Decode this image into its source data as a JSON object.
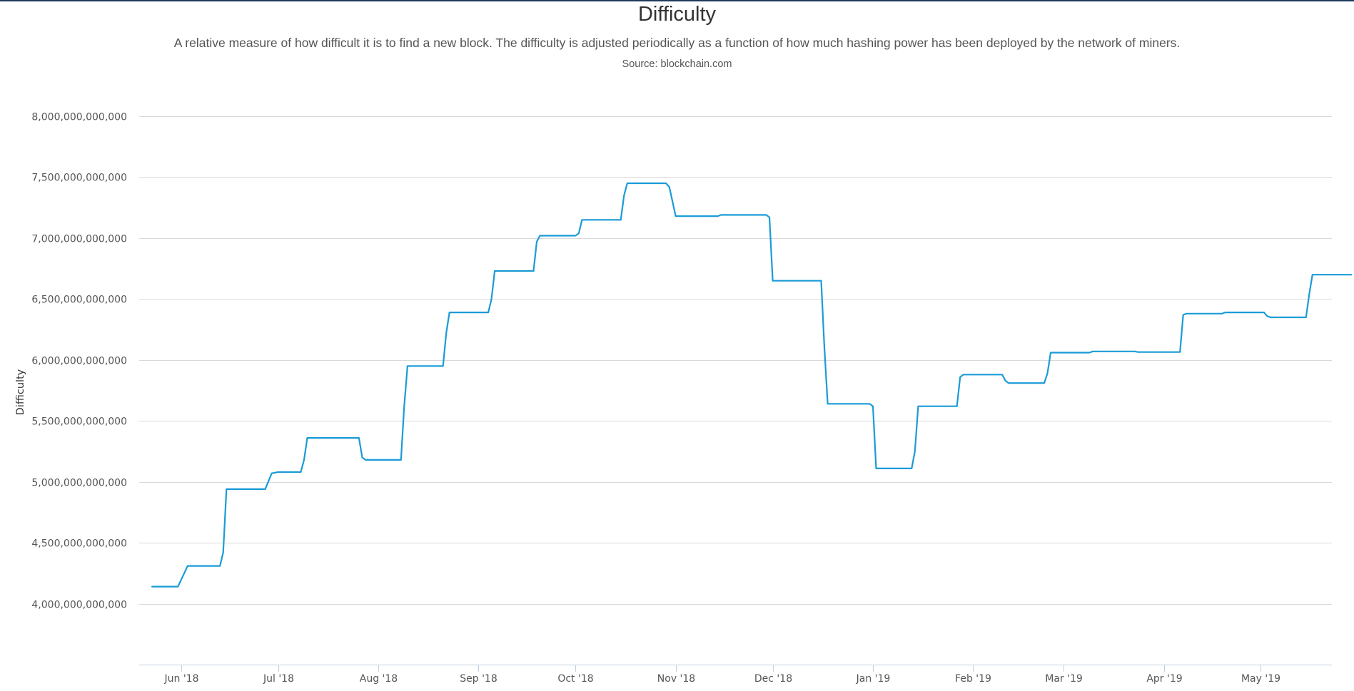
{
  "header": {
    "title": "Difficulty",
    "subtitle": "A relative measure of how difficult it is to find a new block. The difficulty is adjusted periodically as a function of how much hashing power has been deployed by the network of miners.",
    "source": "Source: blockchain.com"
  },
  "colors": {
    "line": "#1a9bd7",
    "grid": "#d9d9d9",
    "axis": "#c0d0e0",
    "top_rule": "#1b3a5c"
  },
  "chart_data": {
    "type": "line",
    "title": "Difficulty",
    "ylabel": "Difficulty",
    "xlabel": "",
    "ylim": [
      3500000000000,
      8000000000000
    ],
    "xlim": [
      "2018-05-19",
      "2019-05-23"
    ],
    "grid": true,
    "legend": "none",
    "y_ticks": [
      {
        "value": 4000000000000,
        "label": "4,000,000,000,000"
      },
      {
        "value": 4500000000000,
        "label": "4,500,000,000,000"
      },
      {
        "value": 5000000000000,
        "label": "5,000,000,000,000"
      },
      {
        "value": 5500000000000,
        "label": "5,500,000,000,000"
      },
      {
        "value": 6000000000000,
        "label": "6,000,000,000,000"
      },
      {
        "value": 6500000000000,
        "label": "6,500,000,000,000"
      },
      {
        "value": 7000000000000,
        "label": "7,000,000,000,000"
      },
      {
        "value": 7500000000000,
        "label": "7,500,000,000,000"
      },
      {
        "value": 8000000000000,
        "label": "8,000,000,000,000"
      }
    ],
    "x_ticks": [
      {
        "date": "2018-06-01",
        "label": "Jun '18"
      },
      {
        "date": "2018-07-01",
        "label": "Jul '18"
      },
      {
        "date": "2018-08-01",
        "label": "Aug '18"
      },
      {
        "date": "2018-09-01",
        "label": "Sep '18"
      },
      {
        "date": "2018-10-01",
        "label": "Oct '18"
      },
      {
        "date": "2018-11-01",
        "label": "Nov '18"
      },
      {
        "date": "2018-12-01",
        "label": "Dec '18"
      },
      {
        "date": "2019-01-01",
        "label": "Jan '19"
      },
      {
        "date": "2019-02-01",
        "label": "Feb '19"
      },
      {
        "date": "2019-03-01",
        "label": "Mar '19"
      },
      {
        "date": "2019-04-01",
        "label": "Apr '19"
      },
      {
        "date": "2019-05-01",
        "label": "May '19"
      }
    ],
    "series": [
      {
        "points": [
          [
            "2018-05-23",
            4140000000000
          ],
          [
            "2018-05-31",
            4140000000000
          ],
          [
            "2018-06-03",
            4310000000000
          ],
          [
            "2018-06-13",
            4310000000000
          ],
          [
            "2018-06-14",
            4420000000000
          ],
          [
            "2018-06-15",
            4940000000000
          ],
          [
            "2018-06-27",
            4940000000000
          ],
          [
            "2018-06-29",
            5070000000000
          ],
          [
            "2018-07-01",
            5080000000000
          ],
          [
            "2018-07-08",
            5080000000000
          ],
          [
            "2018-07-09",
            5180000000000
          ],
          [
            "2018-07-10",
            5360000000000
          ],
          [
            "2018-07-26",
            5360000000000
          ],
          [
            "2018-07-27",
            5200000000000
          ],
          [
            "2018-07-28",
            5180000000000
          ],
          [
            "2018-08-08",
            5180000000000
          ],
          [
            "2018-08-09",
            5620000000000
          ],
          [
            "2018-08-10",
            5950000000000
          ],
          [
            "2018-08-21",
            5950000000000
          ],
          [
            "2018-08-22",
            6220000000000
          ],
          [
            "2018-08-23",
            6390000000000
          ],
          [
            "2018-09-04",
            6390000000000
          ],
          [
            "2018-09-05",
            6500000000000
          ],
          [
            "2018-09-06",
            6730000000000
          ],
          [
            "2018-09-18",
            6730000000000
          ],
          [
            "2018-09-19",
            6970000000000
          ],
          [
            "2018-09-20",
            7020000000000
          ],
          [
            "2018-10-01",
            7020000000000
          ],
          [
            "2018-10-02",
            7040000000000
          ],
          [
            "2018-10-03",
            7150000000000
          ],
          [
            "2018-10-15",
            7150000000000
          ],
          [
            "2018-10-16",
            7350000000000
          ],
          [
            "2018-10-17",
            7450000000000
          ],
          [
            "2018-10-29",
            7450000000000
          ],
          [
            "2018-10-30",
            7420000000000
          ],
          [
            "2018-11-01",
            7180000000000
          ],
          [
            "2018-11-14",
            7180000000000
          ],
          [
            "2018-11-15",
            7190000000000
          ],
          [
            "2018-11-29",
            7190000000000
          ],
          [
            "2018-11-30",
            7170000000000
          ],
          [
            "2018-12-01",
            6650000000000
          ],
          [
            "2018-12-16",
            6650000000000
          ],
          [
            "2018-12-17",
            6100000000000
          ],
          [
            "2018-12-18",
            5640000000000
          ],
          [
            "2018-12-31",
            5640000000000
          ],
          [
            "2019-01-01",
            5620000000000
          ],
          [
            "2019-01-02",
            5110000000000
          ],
          [
            "2019-01-13",
            5110000000000
          ],
          [
            "2019-01-14",
            5250000000000
          ],
          [
            "2019-01-15",
            5620000000000
          ],
          [
            "2019-01-27",
            5620000000000
          ],
          [
            "2019-01-28",
            5860000000000
          ],
          [
            "2019-01-29",
            5880000000000
          ],
          [
            "2019-02-10",
            5880000000000
          ],
          [
            "2019-02-11",
            5830000000000
          ],
          [
            "2019-02-12",
            5810000000000
          ],
          [
            "2019-02-23",
            5810000000000
          ],
          [
            "2019-02-24",
            5890000000000
          ],
          [
            "2019-02-25",
            6060000000000
          ],
          [
            "2019-03-09",
            6060000000000
          ],
          [
            "2019-03-10",
            6070000000000
          ],
          [
            "2019-03-23",
            6070000000000
          ],
          [
            "2019-03-24",
            6065000000000
          ],
          [
            "2019-04-06",
            6065000000000
          ],
          [
            "2019-04-07",
            6370000000000
          ],
          [
            "2019-04-08",
            6380000000000
          ],
          [
            "2019-04-19",
            6380000000000
          ],
          [
            "2019-04-20",
            6390000000000
          ],
          [
            "2019-05-02",
            6390000000000
          ],
          [
            "2019-05-03",
            6360000000000
          ],
          [
            "2019-05-04",
            6350000000000
          ],
          [
            "2019-05-15",
            6350000000000
          ],
          [
            "2019-05-16",
            6540000000000
          ],
          [
            "2019-05-17",
            6700000000000
          ],
          [
            "2019-05-29",
            6700000000000
          ]
        ]
      }
    ]
  }
}
